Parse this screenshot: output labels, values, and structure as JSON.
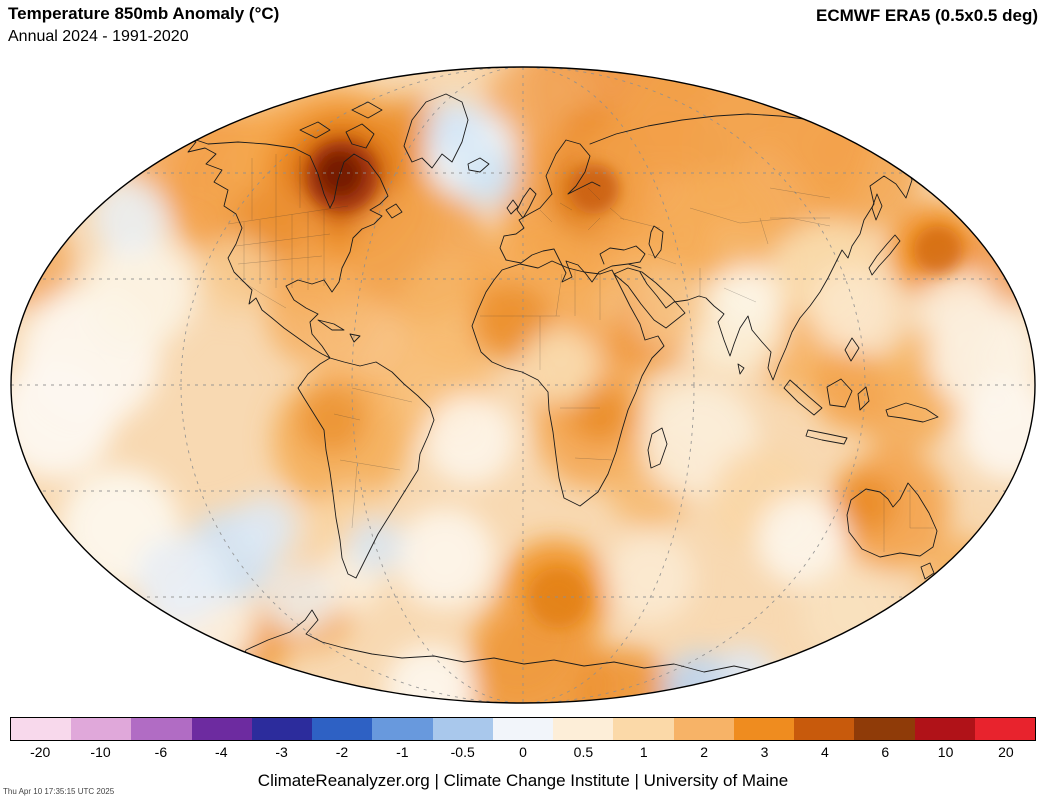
{
  "header": {
    "title": "Temperature 850mb Anomaly (°C)",
    "subtitle": "Annual 2024 - 1991-2020",
    "dataset": "ECMWF ERA5 (0.5x0.5 deg)"
  },
  "colorbar": {
    "ticks": [
      "-20",
      "-10",
      "-6",
      "-4",
      "-3",
      "-2",
      "-1",
      "-0.5",
      "0",
      "0.5",
      "1",
      "2",
      "3",
      "4",
      "6",
      "10",
      "20"
    ],
    "colors": [
      "#f8d9ec",
      "#e0a8da",
      "#b16cc4",
      "#6d2ba0",
      "#2c2c9c",
      "#2e61c4",
      "#6899dd",
      "#a9c8ec",
      "#f2f5fa",
      "#fdeed8",
      "#fbd9a8",
      "#f7b367",
      "#ef8c1f",
      "#c85a0c",
      "#8f3b08",
      "#b01218",
      "#e8232d"
    ]
  },
  "footer": {
    "credit": "ClimateReanalyzer.org | Climate Change Institute | University of Maine",
    "timestamp": "Thu Apr 10 17:35:15 UTC 2025"
  }
}
